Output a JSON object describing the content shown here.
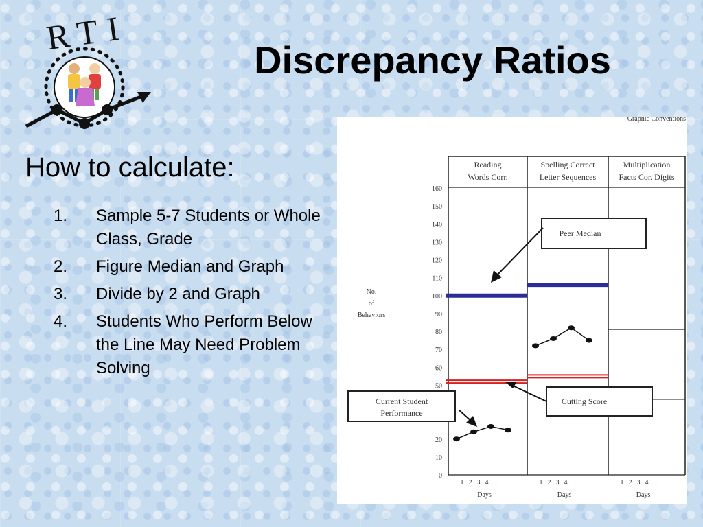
{
  "slide": {
    "title": "Discrepancy Ratios",
    "logo_text": "RTI",
    "subheading": "How to calculate:",
    "steps": [
      {
        "num": "1.",
        "text": "Sample 5-7 Students or Whole Class, Grade"
      },
      {
        "num": "2.",
        "text": "Figure Median and Graph"
      },
      {
        "num": "3.",
        "text": "Divide by 2 and Graph"
      },
      {
        "num": "4.",
        "text": "Students Who Perform Below the Line May Need Problem Solving"
      }
    ]
  },
  "chart_data": {
    "type": "line",
    "top_caption": "Graphic Conventions",
    "ylabel": "No. of Behaviors",
    "ylim": [
      0,
      160
    ],
    "yticks": [
      "160",
      "150",
      "140",
      "130",
      "120",
      "110",
      "100",
      "90",
      "80",
      "70",
      "60",
      "50",
      "",
      "",
      "20",
      "10",
      "0"
    ],
    "xlabel": "Days",
    "xticks": [
      "1",
      "2",
      "3",
      "4",
      "5"
    ],
    "panels": [
      {
        "header": [
          "Reading",
          "Words Corr."
        ],
        "peer_median": 100,
        "cutting_score": 52,
        "days": [
          1,
          2,
          3,
          4
        ],
        "values": [
          20,
          24,
          27,
          25
        ]
      },
      {
        "header": [
          "Spelling Correct",
          "Letter Sequences"
        ],
        "peer_median": 106,
        "cutting_score": 55,
        "days": [
          1,
          2,
          3,
          4
        ],
        "values": [
          72,
          76,
          82,
          75
        ]
      },
      {
        "header": [
          "Multiplication",
          "Facts Cor. Digits"
        ],
        "peer_median": null,
        "cutting_score": null,
        "days": [],
        "values": []
      }
    ],
    "callouts": {
      "peer_median": "Peer Median",
      "current_performance": [
        "Current Student",
        "Performance"
      ],
      "cutting_score": "Cutting Score"
    },
    "colors": {
      "peer_median": "#2b2b9a",
      "cutting_score": "#d42020"
    }
  }
}
